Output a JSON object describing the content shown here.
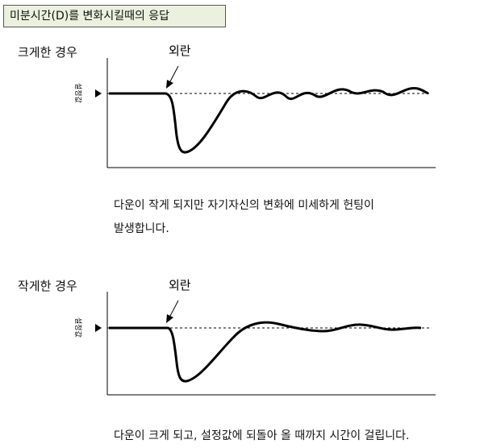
{
  "title": "미분시간(D)를 변화시킬때의 응답",
  "panels": [
    {
      "label": "크게한 경우",
      "disturbance_label": "외란",
      "setpoint_label": "설정값",
      "caption_lines": [
        "다운이 작게 되지만 자기자신의 변화에 미세하게 헌팅이",
        "발생합니다."
      ]
    },
    {
      "label": "작게한 경우",
      "disturbance_label": "외란",
      "setpoint_label": "설정값",
      "caption_lines": [
        "다운이 크게 되고, 설정값에 되돌아 올 때까지 시간이 걸립니다."
      ]
    }
  ],
  "colors": {
    "title_background": "#ebf1de",
    "line": "#000000"
  }
}
